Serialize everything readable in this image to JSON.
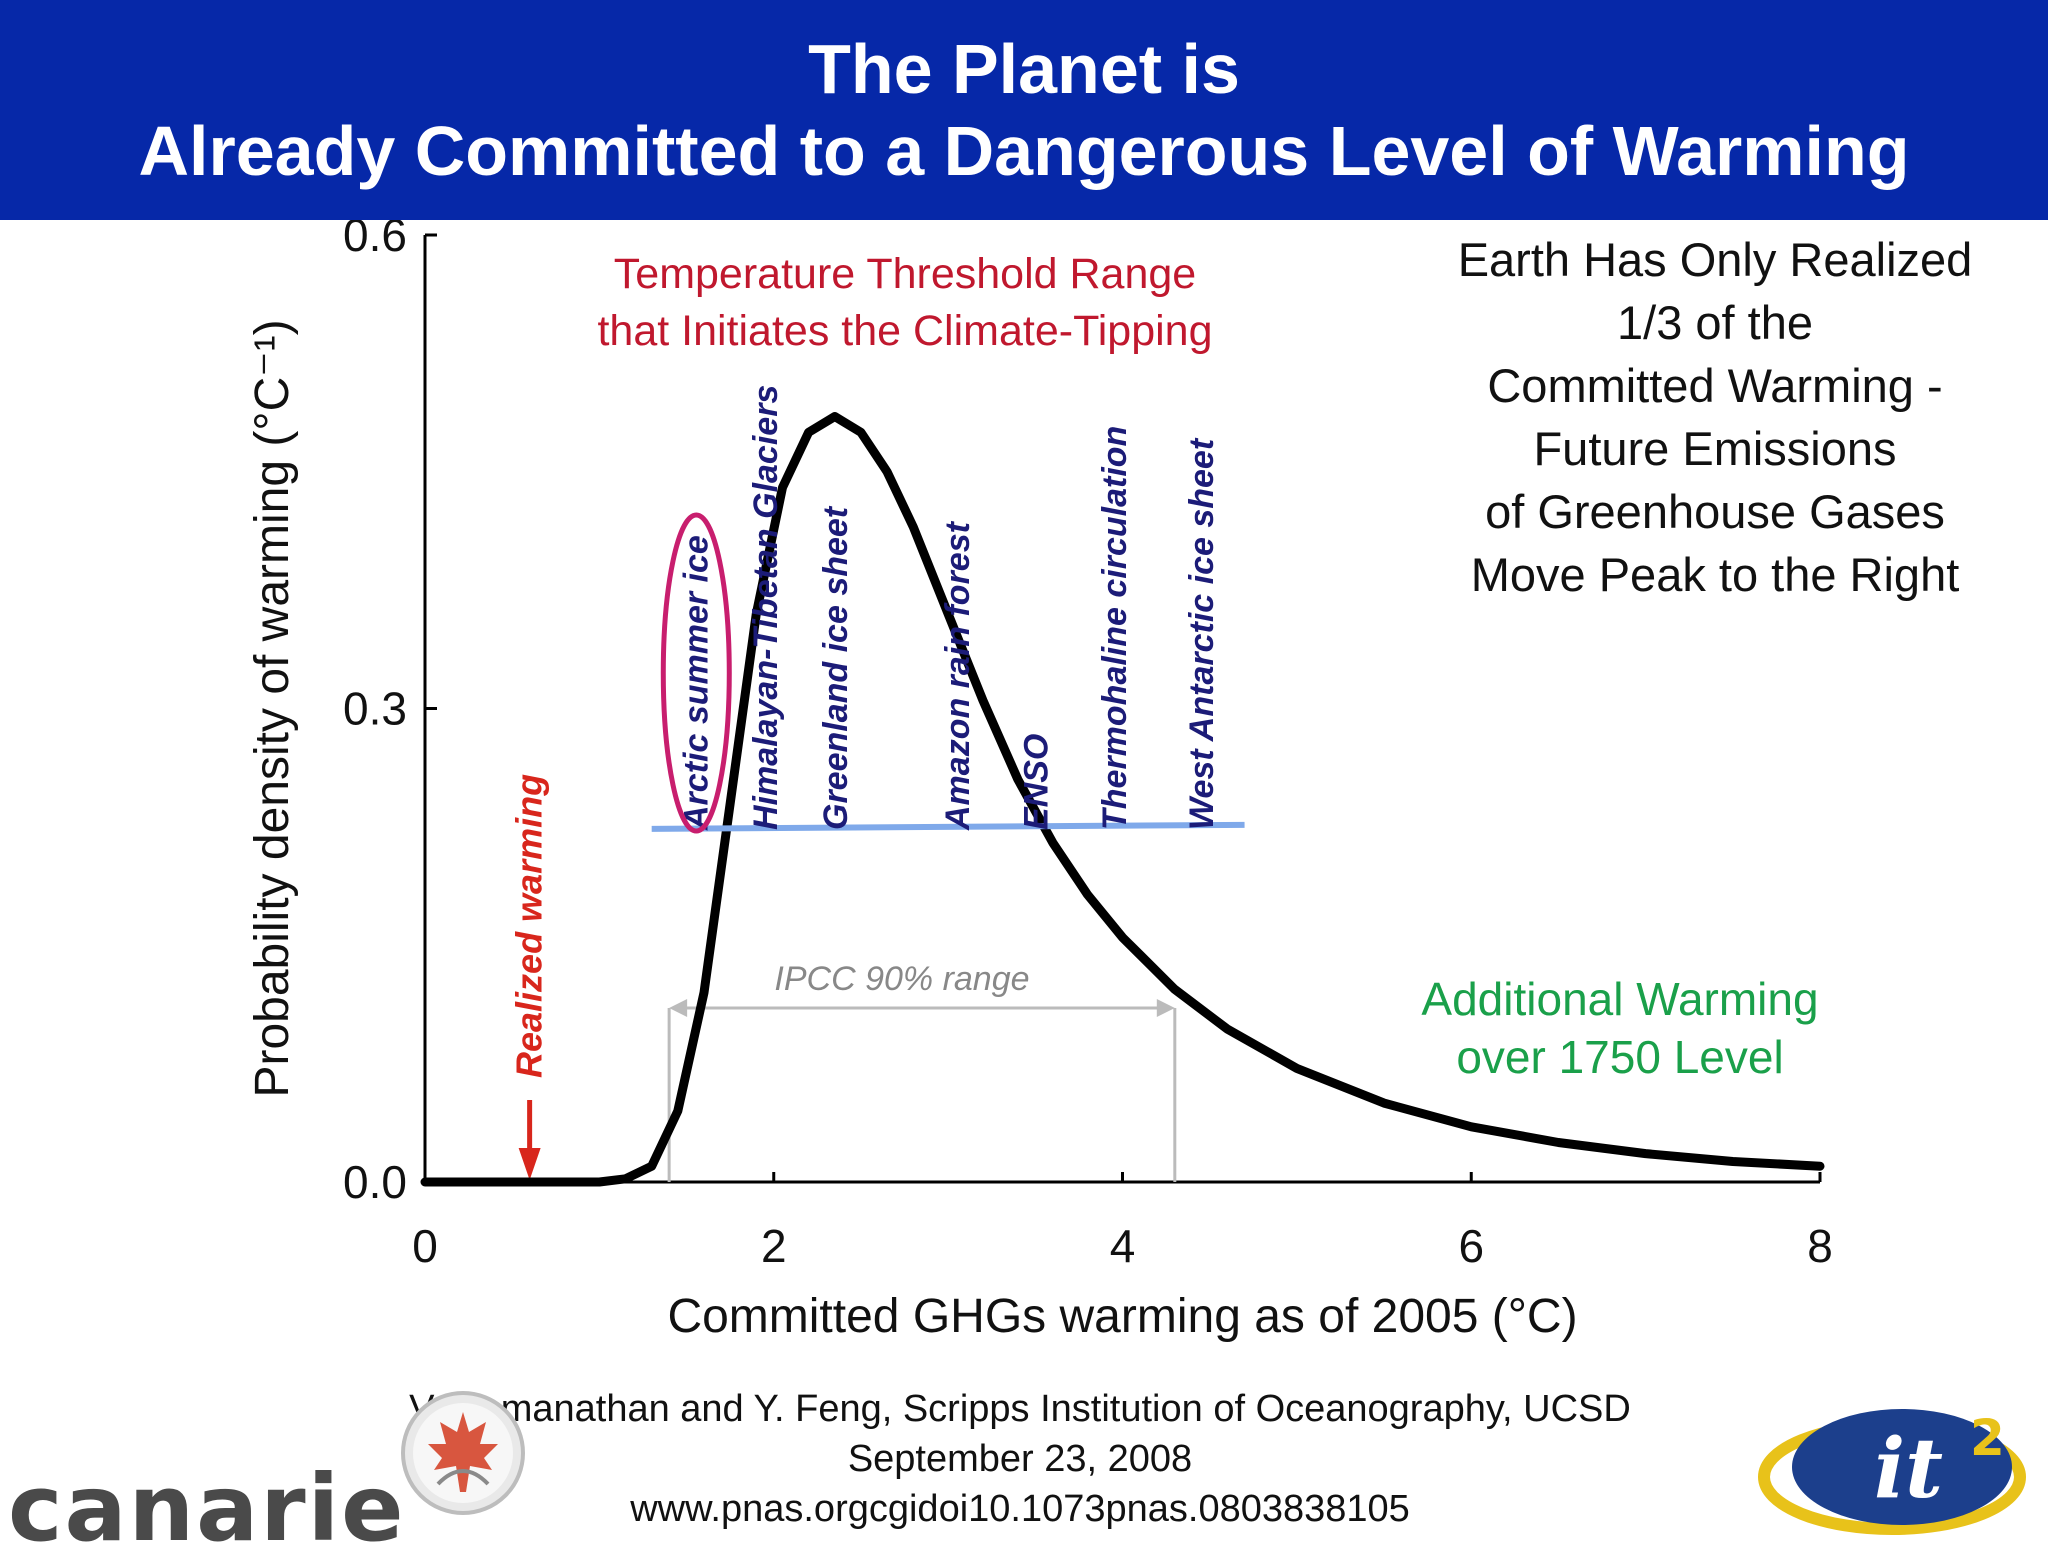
{
  "header": {
    "title_line1": "The Planet is",
    "title_line2": "Already Committed to a Dangerous Level of Warming"
  },
  "chart_data": {
    "type": "line",
    "xlabel": "Committed GHGs warming as of 2005 (°C)",
    "ylabel": "Probability density of warming (°C⁻¹)",
    "xlim": [
      0,
      8
    ],
    "ylim": [
      0,
      0.6
    ],
    "x_ticks": [
      "0",
      "2",
      "4",
      "6",
      "8"
    ],
    "y_ticks": [
      "0.0",
      "0.3",
      "0.6"
    ],
    "grid": false,
    "series": [
      {
        "x": [
          0,
          0.5,
          1.0,
          1.15,
          1.3,
          1.45,
          1.6,
          1.75,
          1.9,
          2.05,
          2.2,
          2.35,
          2.5,
          2.65,
          2.8,
          3.0,
          3.2,
          3.4,
          3.6,
          3.8,
          4.0,
          4.3,
          4.6,
          5.0,
          5.5,
          6.0,
          6.5,
          7.0,
          7.5,
          8.0
        ],
        "values": [
          0,
          0,
          0,
          0.002,
          0.01,
          0.045,
          0.12,
          0.24,
          0.36,
          0.44,
          0.475,
          0.485,
          0.475,
          0.45,
          0.415,
          0.36,
          0.305,
          0.255,
          0.215,
          0.182,
          0.155,
          0.122,
          0.097,
          0.072,
          0.05,
          0.035,
          0.025,
          0.018,
          0.013,
          0.01
        ]
      }
    ],
    "realized_warming": {
      "x": 0.6,
      "label": "Realized warming"
    },
    "ipcc_range": {
      "x_start": 1.4,
      "x_end": 4.3,
      "label": "IPCC 90% range"
    },
    "threshold_line": {
      "y": 0.225,
      "x_start": 1.3,
      "x_end": 4.7
    },
    "tipping_elements": [
      {
        "x": 1.55,
        "label": "Arctic summer ice"
      },
      {
        "x": 1.95,
        "label": "Himalayan-Tibetan Glaciers"
      },
      {
        "x": 2.35,
        "label": "Greenland ice sheet"
      },
      {
        "x": 3.05,
        "label": "Amazon rain forest"
      },
      {
        "x": 3.5,
        "label": "ENSO"
      },
      {
        "x": 3.95,
        "label": "Thermohaline circulation"
      },
      {
        "x": 4.45,
        "label": "West Antarctic ice sheet"
      }
    ],
    "threshold_title": [
      "Temperature Threshold Range",
      "that Initiates the Climate-Tipping"
    ],
    "colors": {
      "curve": "#000000",
      "threshold_line": "#7fa9ea",
      "threshold_title": "#c0182e",
      "realized": "#d8261c",
      "ipcc": "#bbbbbb",
      "ipcc_text": "#888888",
      "tipping_labels": "#1c1c78",
      "ellipse": "#c81e6e"
    }
  },
  "side_note": {
    "lines": [
      "Earth Has Only Realized",
      "1/3 of the",
      "Committed Warming -",
      "Future Emissions",
      "of Greenhouse Gases",
      "Move Peak to the Right"
    ]
  },
  "green_note": {
    "lines": [
      "Additional Warming",
      "over 1750 Level"
    ]
  },
  "citation": {
    "line1": "V. Ramanathan and Y. Feng, Scripps Institution of Oceanography, UCSD",
    "line2": "September 23, 2008",
    "line3": "www.pnas.orgcgidoi10.1073pnas.0803838105"
  },
  "logos": {
    "canarie": "canarie",
    "it2_text": "it",
    "it2_superscript": "2"
  }
}
